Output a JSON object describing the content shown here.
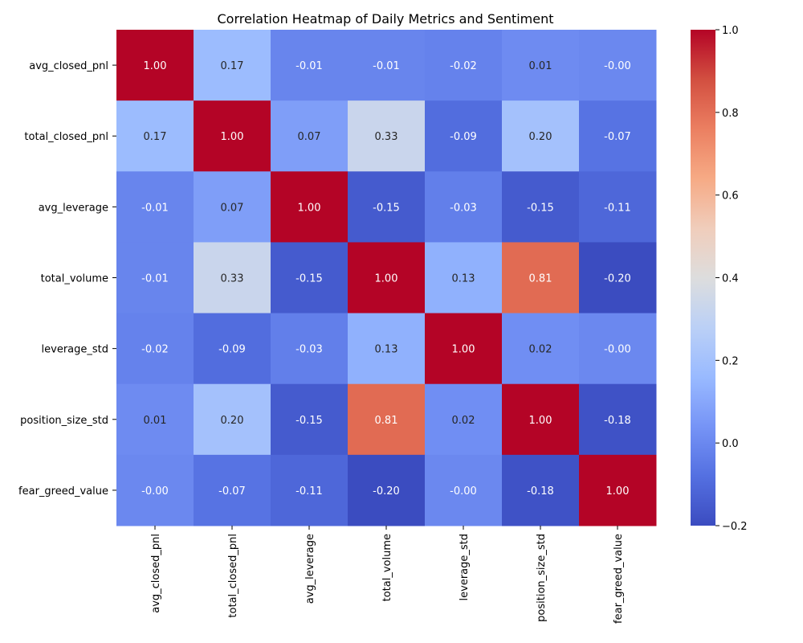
{
  "chart_data": {
    "type": "heatmap",
    "title": "Correlation Heatmap of Daily Metrics and Sentiment",
    "xlabel": "",
    "ylabel": "",
    "x_categories": [
      "avg_closed_pnl",
      "total_closed_pnl",
      "avg_leverage",
      "total_volume",
      "leverage_std",
      "position_size_std",
      "fear_greed_value"
    ],
    "y_categories": [
      "avg_closed_pnl",
      "total_closed_pnl",
      "avg_leverage",
      "total_volume",
      "leverage_std",
      "position_size_std",
      "fear_greed_value"
    ],
    "values": [
      [
        1.0,
        0.17,
        -0.01,
        -0.01,
        -0.02,
        0.01,
        -0.0
      ],
      [
        0.17,
        1.0,
        0.07,
        0.33,
        -0.09,
        0.2,
        -0.07
      ],
      [
        -0.01,
        0.07,
        1.0,
        -0.15,
        -0.03,
        -0.15,
        -0.11
      ],
      [
        -0.01,
        0.33,
        -0.15,
        1.0,
        0.13,
        0.81,
        -0.2
      ],
      [
        -0.02,
        -0.09,
        -0.03,
        0.13,
        1.0,
        0.02,
        -0.0
      ],
      [
        0.01,
        0.2,
        -0.15,
        0.81,
        0.02,
        1.0,
        -0.18
      ],
      [
        -0.0,
        -0.07,
        -0.11,
        -0.2,
        -0.0,
        -0.18,
        1.0
      ]
    ],
    "cell_labels": [
      [
        "1.00",
        "0.17",
        "-0.01",
        "-0.01",
        "-0.02",
        "0.01",
        "-0.00"
      ],
      [
        "0.17",
        "1.00",
        "0.07",
        "0.33",
        "-0.09",
        "0.20",
        "-0.07"
      ],
      [
        "-0.01",
        "0.07",
        "1.00",
        "-0.15",
        "-0.03",
        "-0.15",
        "-0.11"
      ],
      [
        "-0.01",
        "0.33",
        "-0.15",
        "1.00",
        "0.13",
        "0.81",
        "-0.20"
      ],
      [
        "-0.02",
        "-0.09",
        "-0.03",
        "0.13",
        "1.00",
        "0.02",
        "-0.00"
      ],
      [
        "0.01",
        "0.20",
        "-0.15",
        "0.81",
        "0.02",
        "1.00",
        "-0.18"
      ],
      [
        "-0.00",
        "-0.07",
        "-0.11",
        "-0.20",
        "-0.00",
        "-0.18",
        "1.00"
      ]
    ],
    "colormap": "coolwarm",
    "colorbar": {
      "range": [
        -0.2,
        1.0
      ],
      "ticks": [
        -0.2,
        0.0,
        0.2,
        0.4,
        0.6,
        0.8,
        1.0
      ],
      "tick_labels": [
        "−0.2",
        "0.0",
        "0.2",
        "0.4",
        "0.6",
        "0.8",
        "1.0"
      ],
      "placement": "right"
    }
  }
}
